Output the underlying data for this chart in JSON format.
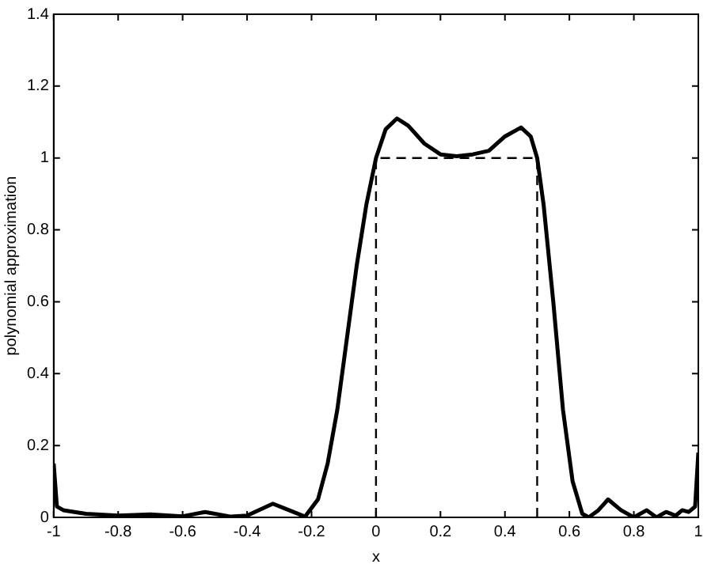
{
  "chart_data": {
    "type": "line",
    "xlabel": "x",
    "ylabel": "polynomial approximation",
    "xlim": [
      -1,
      1
    ],
    "xticks": [
      -1,
      -0.8,
      -0.6,
      -0.4,
      -0.2,
      0,
      0.2,
      0.4,
      0.6,
      0.8,
      1
    ],
    "ylim": [
      0,
      1.4
    ],
    "yticks": [
      0,
      0.2,
      0.4,
      0.6,
      0.8,
      1,
      1.2,
      1.4
    ],
    "grid": false,
    "legend": false,
    "marker": "none",
    "series": [
      {
        "color": "#000000",
        "line_style": "solid",
        "x": [
          -1,
          -0.99,
          -0.97,
          -0.9,
          -0.8,
          -0.7,
          -0.6,
          -0.53,
          -0.45,
          -0.4,
          -0.32,
          -0.27,
          -0.22,
          -0.18,
          -0.15,
          -0.12,
          -0.09,
          -0.06,
          -0.03,
          0,
          0.03,
          0.065,
          0.1,
          0.15,
          0.2,
          0.25,
          0.3,
          0.35,
          0.4,
          0.45,
          0.48,
          0.5,
          0.52,
          0.55,
          0.58,
          0.61,
          0.64,
          0.66,
          0.69,
          0.72,
          0.76,
          0.8,
          0.84,
          0.87,
          0.9,
          0.93,
          0.95,
          0.97,
          0.99,
          1
        ],
        "values": [
          0.15,
          0.03,
          0.02,
          0.01,
          0.005,
          0.008,
          0.003,
          0.015,
          0.002,
          0.005,
          0.038,
          0.02,
          0.002,
          0.05,
          0.15,
          0.3,
          0.5,
          0.7,
          0.87,
          1.0,
          1.08,
          1.11,
          1.09,
          1.04,
          1.01,
          1.005,
          1.01,
          1.02,
          1.06,
          1.085,
          1.06,
          1.0,
          0.87,
          0.6,
          0.3,
          0.1,
          0.01,
          0.0,
          0.02,
          0.05,
          0.02,
          0.0,
          0.02,
          0.0,
          0.015,
          0.005,
          0.02,
          0.015,
          0.03,
          0.18
        ]
      },
      {
        "color": "#000000",
        "line_style": "dashed",
        "x": [
          0,
          0,
          0.5,
          0.5
        ],
        "values": [
          0,
          1,
          1,
          0
        ]
      }
    ]
  }
}
